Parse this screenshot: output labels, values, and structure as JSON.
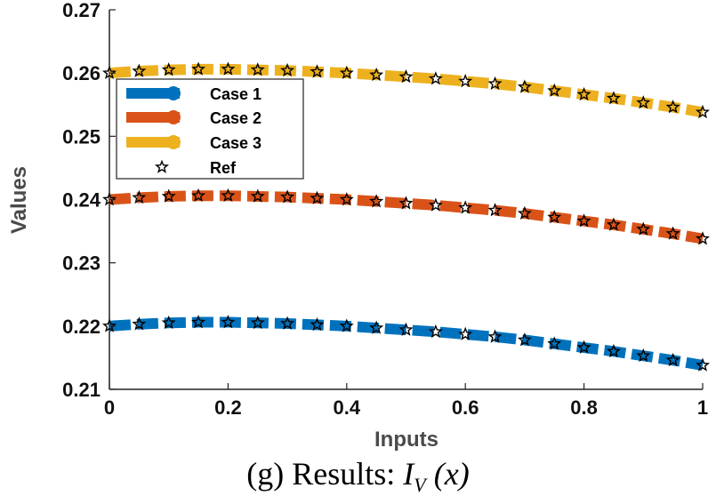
{
  "chart_data": {
    "type": "line",
    "title": "",
    "xlabel": "Inputs",
    "ylabel": "Values",
    "xlim": [
      0,
      1
    ],
    "ylim": [
      0.21,
      0.27
    ],
    "xticks": [
      "0",
      "0.2",
      "0.4",
      "0.6",
      "0.8",
      "1"
    ],
    "yticks": [
      "0.21",
      "0.22",
      "0.23",
      "0.24",
      "0.25",
      "0.26",
      "0.27"
    ],
    "x": [
      0,
      0.05,
      0.1,
      0.15,
      0.2,
      0.25,
      0.3,
      0.35,
      0.4,
      0.45,
      0.5,
      0.55,
      0.6,
      0.65,
      0.7,
      0.75,
      0.8,
      0.85,
      0.9,
      0.95,
      1.0
    ],
    "series": [
      {
        "name": "Case 1",
        "color": "#0072BD",
        "values": [
          0.22,
          0.2203,
          0.2205,
          0.2206,
          0.2206,
          0.2205,
          0.2204,
          0.2202,
          0.22,
          0.2197,
          0.2194,
          0.2191,
          0.2187,
          0.2183,
          0.2178,
          0.2172,
          0.2166,
          0.216,
          0.2153,
          0.2146,
          0.2138
        ]
      },
      {
        "name": "Case 2",
        "color": "#D95319",
        "values": [
          0.24,
          0.2403,
          0.2405,
          0.2406,
          0.2406,
          0.2405,
          0.2404,
          0.2402,
          0.24,
          0.2397,
          0.2394,
          0.2391,
          0.2387,
          0.2383,
          0.2378,
          0.2372,
          0.2366,
          0.236,
          0.2353,
          0.2346,
          0.2338
        ]
      },
      {
        "name": "Case 3",
        "color": "#EDB120",
        "values": [
          0.26,
          0.2603,
          0.2605,
          0.2606,
          0.2606,
          0.2605,
          0.2604,
          0.2602,
          0.26,
          0.2597,
          0.2594,
          0.2591,
          0.2587,
          0.2583,
          0.2578,
          0.2572,
          0.2566,
          0.256,
          0.2553,
          0.2546,
          0.2538
        ]
      }
    ],
    "reference": {
      "name": "Ref",
      "marker": "star",
      "color": "#000000"
    },
    "legend": [
      "Case 1",
      "Case 2",
      "Case 3",
      "Ref"
    ],
    "legend_position": "upper-left",
    "grid": false
  },
  "caption": {
    "prefix": "(g) Results:",
    "symbol": "I",
    "subscript": "V",
    "argument": "(x)"
  }
}
